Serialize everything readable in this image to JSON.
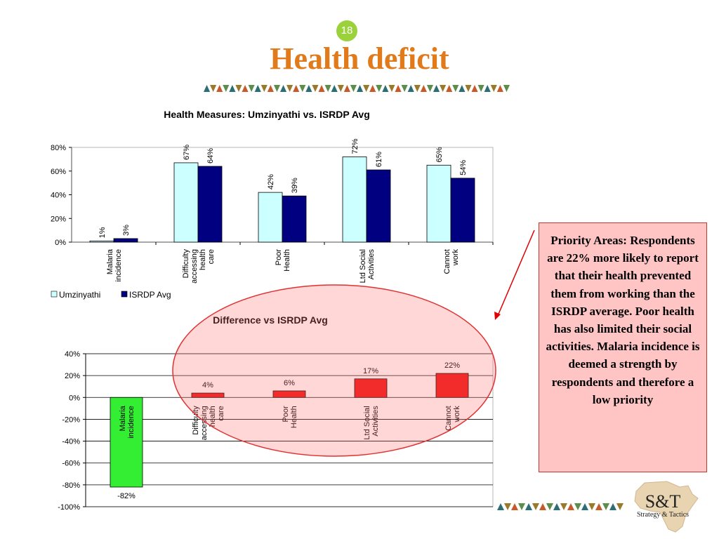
{
  "slide": {
    "number": "18",
    "title": "Health deficit",
    "colors": {
      "title": "#e07a1a",
      "badge": "#9bd13a",
      "callout_bg": "#ffc4c4",
      "callout_border": "#c0392b"
    }
  },
  "callout": {
    "text": "Priority Areas: Respondents are 22% more likely to report that their health prevented them from working than the ISRDP average. Poor health has also limited their social activities.  Malaria incidence is deemed a strength by respondents and therefore a low priority"
  },
  "logo": {
    "main": "S&T",
    "sub": "Strategy & Tactics",
    "icon": "africa-map-icon"
  },
  "chart_data": [
    {
      "type": "bar",
      "title": "Health Measures: Umzinyathi vs. ISRDP Avg",
      "categories": [
        "Malaria\nincidence",
        "Difficulty\naccessing\nhealth\ncare",
        "Poor\nHealth",
        "Ltd Social\nActivities",
        "Cannot\nwork"
      ],
      "series": [
        {
          "name": "Umzinyathi",
          "values": [
            1,
            67,
            42,
            72,
            65
          ],
          "labels": [
            "1%",
            "67%",
            "42%",
            "72%",
            "65%"
          ],
          "color": "#ccffff"
        },
        {
          "name": "ISRDP Avg",
          "values": [
            3,
            64,
            39,
            61,
            54
          ],
          "labels": [
            "3%",
            "64%",
            "39%",
            "61%",
            "54%"
          ],
          "color": "#000080"
        }
      ],
      "ylim": [
        0,
        80
      ],
      "yticks": [
        "0%",
        "20%",
        "40%",
        "60%",
        "80%"
      ],
      "legend": "bottom-left",
      "grid": false
    },
    {
      "type": "bar",
      "title": "Difference vs ISRDP Avg",
      "categories": [
        "Malaria\nincidence",
        "Difficulty\naccessing\nhealth\ncare",
        "Poor\nHealth",
        "Ltd Social\nActivities",
        "Cannot\nwork"
      ],
      "values": [
        -82,
        4,
        6,
        17,
        22
      ],
      "labels": [
        "-82%",
        "4%",
        "6%",
        "17%",
        "22%"
      ],
      "colors": [
        "#33ee33",
        "#ee1111",
        "#ee1111",
        "#ee1111",
        "#ee1111"
      ],
      "ylim": [
        -100,
        40
      ],
      "yticks": [
        "-100%",
        "-80%",
        "-60%",
        "-40%",
        "-20%",
        "0%",
        "20%",
        "40%"
      ],
      "grid": true
    }
  ]
}
